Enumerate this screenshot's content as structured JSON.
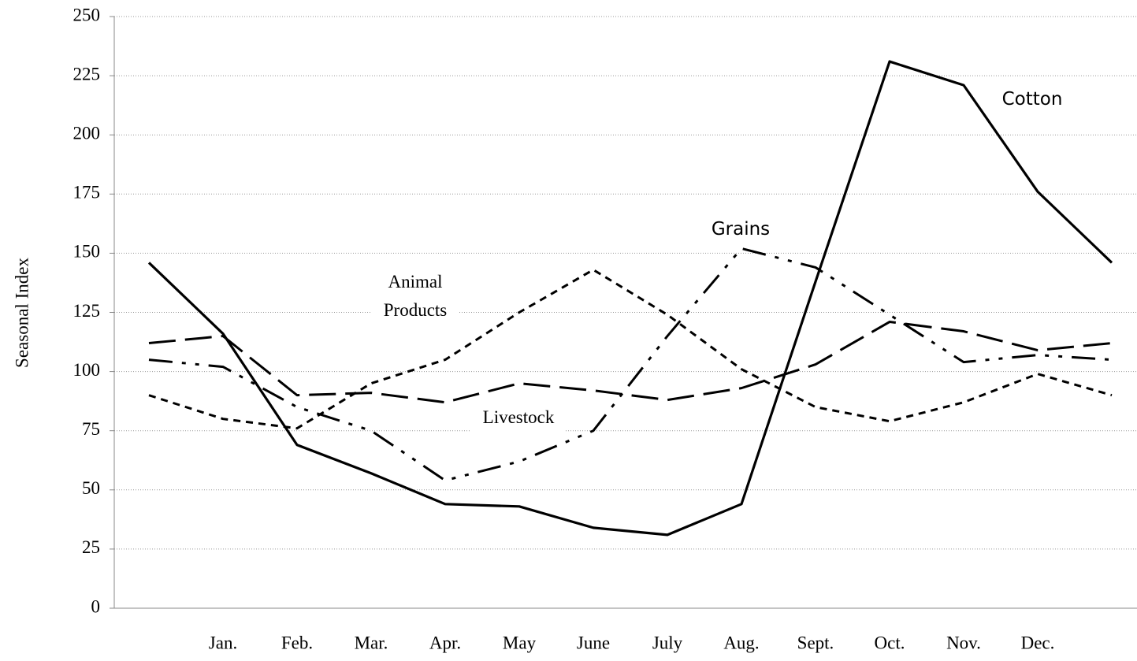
{
  "chart_data": {
    "type": "line",
    "y_label": "Seasonal Index",
    "categories": [
      null,
      "Jan.",
      "Feb.",
      "Mar.",
      "Apr.",
      "May",
      "June",
      "July",
      "Aug.",
      "Sept.",
      "Oct.",
      "Nov.",
      "Dec.",
      null
    ],
    "series": [
      {
        "name": "Cotton",
        "color": "#000000",
        "values": [
          146,
          116,
          69,
          57,
          44,
          43,
          34,
          31,
          44,
          138,
          231,
          221,
          176,
          146
        ]
      },
      {
        "name": "Animal Products",
        "color": "#000000",
        "values": [
          90,
          80,
          76,
          95,
          105,
          125,
          143,
          124,
          101,
          85,
          79,
          87,
          99,
          90
        ]
      },
      {
        "name": "Grains",
        "color": "#000000",
        "values": [
          105,
          102,
          85,
          75,
          54,
          62,
          75,
          115,
          152,
          144,
          124,
          104,
          107,
          105
        ]
      },
      {
        "name": "Livestock",
        "color": "#000000",
        "values": [
          112,
          115,
          90,
          91,
          87,
          95,
          92,
          88,
          93,
          103,
          121,
          117,
          109,
          112
        ]
      }
    ],
    "ylim": [
      0,
      250
    ],
    "yticks": [
      0,
      25,
      50,
      75,
      100,
      125,
      150,
      175,
      200,
      225,
      250
    ],
    "grid": true
  }
}
